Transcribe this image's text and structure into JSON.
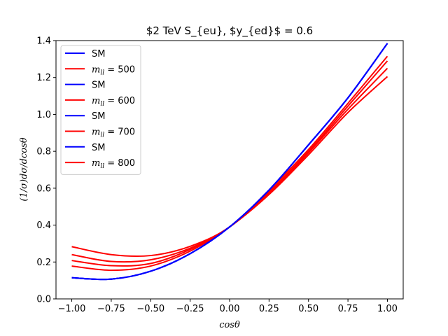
{
  "chart_data": {
    "type": "line",
    "title": "$2 TeV S_{eu}, $y_{ed}$ = 0.6",
    "xlabel": "cosθ",
    "ylabel": "(1/σ)dσ/dcosθ",
    "xlim": [
      -1.1,
      1.1
    ],
    "ylim": [
      0.0,
      1.4
    ],
    "xticks": [
      "−1.00",
      "−0.75",
      "−0.50",
      "−0.25",
      "0.00",
      "0.25",
      "0.50",
      "0.75",
      "1.00"
    ],
    "xtick_values": [
      -1.0,
      -0.75,
      -0.5,
      -0.25,
      0.0,
      0.25,
      0.5,
      0.75,
      1.0
    ],
    "yticks": [
      "0.0",
      "0.2",
      "0.4",
      "0.6",
      "0.8",
      "1.0",
      "1.2",
      "1.4"
    ],
    "ytick_values": [
      0.0,
      0.2,
      0.4,
      0.6,
      0.8,
      1.0,
      1.2,
      1.4
    ],
    "grid": false,
    "legend_position": "upper-left",
    "x": [
      -1.0,
      -0.75,
      -0.5,
      -0.25,
      0.0,
      0.25,
      0.5,
      0.75,
      1.0
    ],
    "series": [
      {
        "name": "SM",
        "color": "#0000ff",
        "values": [
          0.115,
          0.107,
          0.15,
          0.245,
          0.39,
          0.59,
          0.835,
          1.09,
          1.385
        ]
      },
      {
        "name": "m_{ll} = 500",
        "color": "#ff0000",
        "values": [
          0.178,
          0.155,
          0.178,
          0.259,
          0.39,
          0.566,
          0.781,
          1.01,
          1.205
        ]
      },
      {
        "name": "SM",
        "color": "#0000ff",
        "values": [
          0.115,
          0.107,
          0.15,
          0.245,
          0.39,
          0.59,
          0.835,
          1.09,
          1.385
        ]
      },
      {
        "name": "m_{ll} = 600",
        "color": "#ff0000",
        "values": [
          0.208,
          0.18,
          0.192,
          0.268,
          0.39,
          0.572,
          0.792,
          1.028,
          1.25
        ]
      },
      {
        "name": "SM",
        "color": "#0000ff",
        "values": [
          0.115,
          0.107,
          0.15,
          0.245,
          0.39,
          0.59,
          0.835,
          1.09,
          1.385
        ]
      },
      {
        "name": "m_{ll} = 700",
        "color": "#ff0000",
        "values": [
          0.24,
          0.203,
          0.212,
          0.275,
          0.39,
          0.58,
          0.8,
          1.045,
          1.29
        ]
      },
      {
        "name": "SM",
        "color": "#0000ff",
        "values": [
          0.115,
          0.107,
          0.15,
          0.245,
          0.39,
          0.59,
          0.835,
          1.09,
          1.385
        ]
      },
      {
        "name": "m_{ll} = 800",
        "color": "#ff0000",
        "values": [
          0.283,
          0.24,
          0.235,
          0.285,
          0.39,
          0.59,
          0.81,
          1.06,
          1.315
        ]
      }
    ],
    "legend": [
      {
        "kind": "text",
        "label": "SM",
        "color": "#0000ff"
      },
      {
        "kind": "mll",
        "value": "500",
        "color": "#ff0000"
      },
      {
        "kind": "text",
        "label": "SM",
        "color": "#0000ff"
      },
      {
        "kind": "mll",
        "value": "600",
        "color": "#ff0000"
      },
      {
        "kind": "text",
        "label": "SM",
        "color": "#0000ff"
      },
      {
        "kind": "mll",
        "value": "700",
        "color": "#ff0000"
      },
      {
        "kind": "text",
        "label": "SM",
        "color": "#0000ff"
      },
      {
        "kind": "mll",
        "value": "800",
        "color": "#ff0000"
      }
    ]
  }
}
